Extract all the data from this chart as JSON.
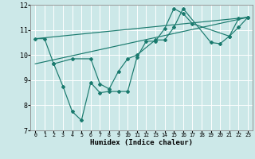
{
  "title": "",
  "xlabel": "Humidex (Indice chaleur)",
  "background_color": "#cce8e8",
  "grid_color": "#ffffff",
  "line_color": "#1a7a6e",
  "xlim": [
    -0.5,
    23.5
  ],
  "ylim": [
    7,
    12
  ],
  "xticks": [
    0,
    1,
    2,
    3,
    4,
    5,
    6,
    7,
    8,
    9,
    10,
    11,
    12,
    13,
    14,
    15,
    16,
    17,
    18,
    19,
    20,
    21,
    22,
    23
  ],
  "yticks": [
    7,
    8,
    9,
    10,
    11,
    12
  ],
  "line1_x": [
    0,
    1,
    2,
    3,
    4,
    5,
    6,
    7,
    8,
    9,
    10,
    11,
    12,
    13,
    14,
    15,
    16,
    17,
    21,
    22,
    23
  ],
  "line1_y": [
    10.65,
    10.65,
    9.65,
    8.75,
    7.75,
    7.4,
    8.9,
    8.5,
    8.55,
    8.55,
    8.55,
    9.9,
    10.55,
    10.55,
    11.05,
    11.85,
    11.65,
    11.25,
    10.75,
    11.45,
    11.5
  ],
  "line2_x": [
    2,
    4,
    6,
    7,
    8,
    9,
    10,
    11,
    13,
    14,
    15,
    16,
    19,
    20,
    21,
    22,
    23
  ],
  "line2_y": [
    9.65,
    9.85,
    9.85,
    8.85,
    8.65,
    9.35,
    9.85,
    10.0,
    10.6,
    10.6,
    11.1,
    11.85,
    10.5,
    10.45,
    10.75,
    11.1,
    11.5
  ],
  "line3_x": [
    0,
    23
  ],
  "line3_y": [
    10.65,
    11.5
  ],
  "line4_x": [
    0,
    23
  ],
  "line4_y": [
    9.65,
    11.5
  ]
}
